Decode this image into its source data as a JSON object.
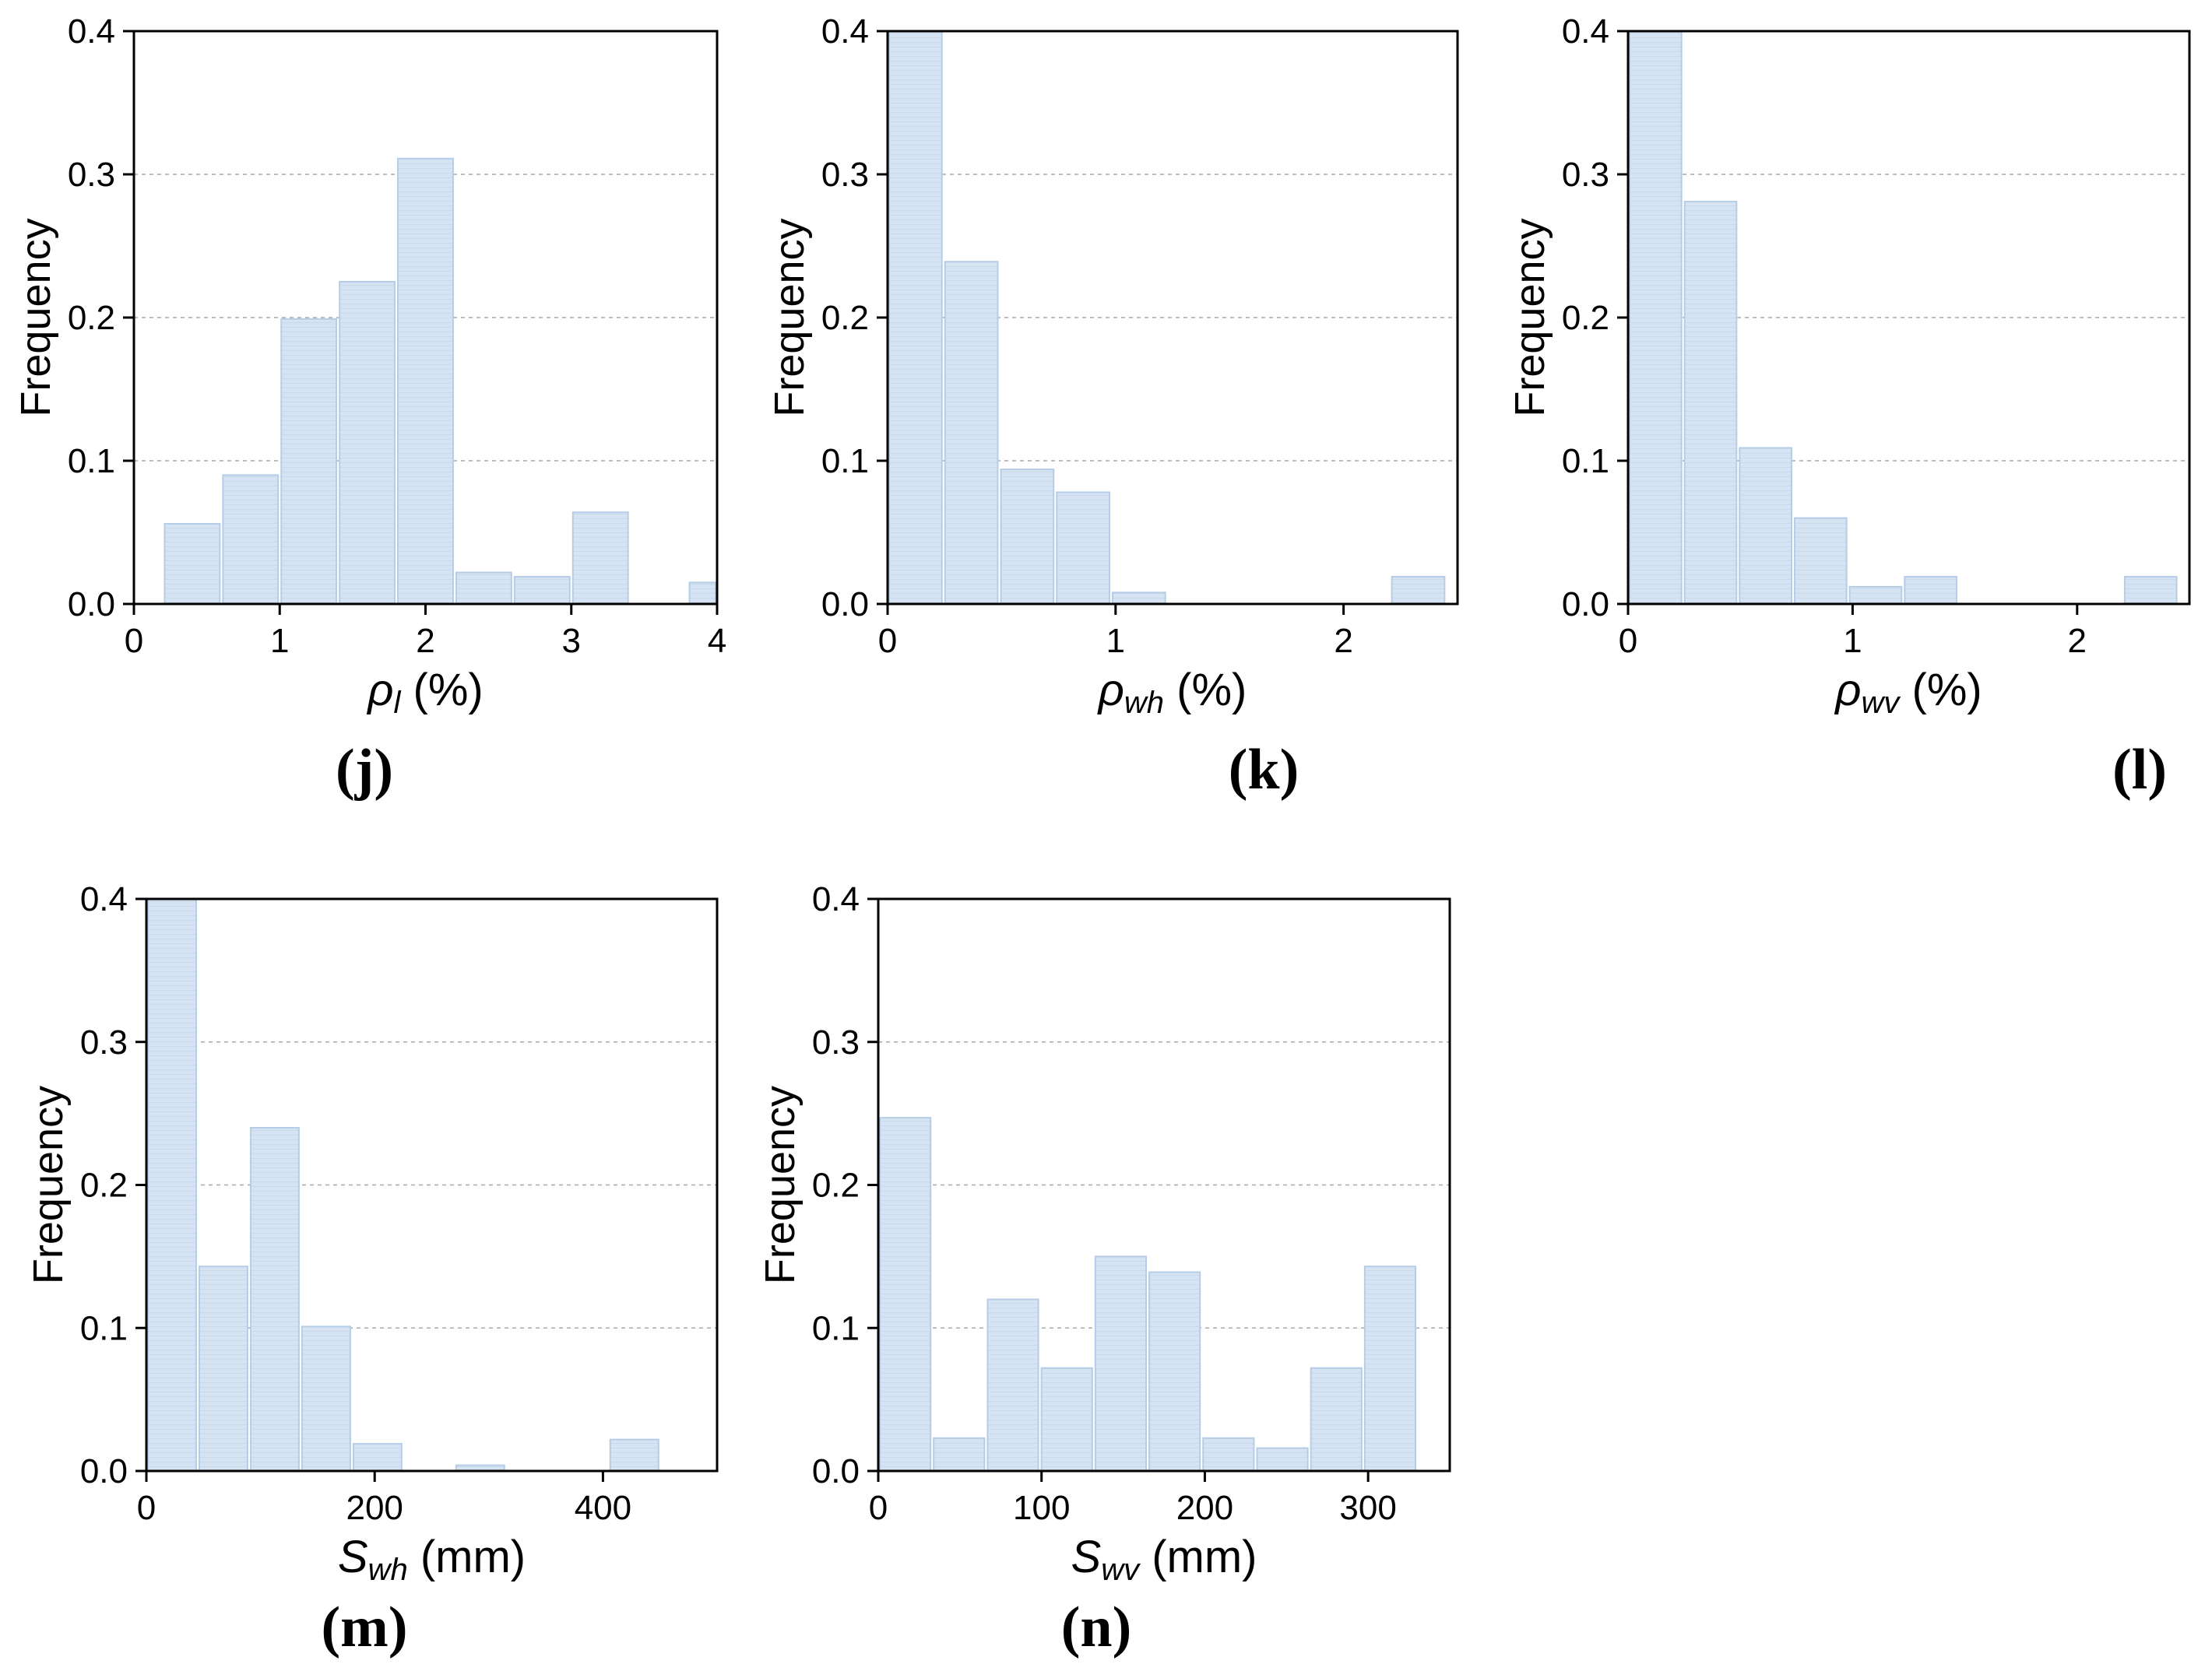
{
  "chart_data": [
    {
      "id": "j",
      "type": "bar",
      "panel_label": "(j)",
      "ylabel": "Frequency",
      "xlabel": {
        "symbol": "ρ",
        "subscript": "l",
        "unit": " (%)"
      },
      "xlim": [
        0,
        4
      ],
      "ylim": [
        0,
        0.4
      ],
      "xticks": [
        0,
        1,
        2,
        3,
        4
      ],
      "xticklabels": [
        "0",
        "1",
        "2",
        "3",
        "4"
      ],
      "yticks": [
        0,
        0.1,
        0.2,
        0.3,
        0.4
      ],
      "yticklabels": [
        "0.0",
        "0.1",
        "0.2",
        "0.3",
        "0.4"
      ],
      "grid": "horizontal dashed",
      "bars": [
        {
          "x0": 0.2,
          "x1": 0.6,
          "value": 0.056
        },
        {
          "x0": 0.6,
          "x1": 1.0,
          "value": 0.09
        },
        {
          "x0": 1.0,
          "x1": 1.4,
          "value": 0.199
        },
        {
          "x0": 1.4,
          "x1": 1.8,
          "value": 0.225
        },
        {
          "x0": 1.8,
          "x1": 2.2,
          "value": 0.311
        },
        {
          "x0": 2.2,
          "x1": 2.6,
          "value": 0.022
        },
        {
          "x0": 2.6,
          "x1": 3.0,
          "value": 0.019
        },
        {
          "x0": 3.0,
          "x1": 3.4,
          "value": 0.064
        },
        {
          "x0": 3.8,
          "x1": 4.2,
          "value": 0.015
        }
      ]
    },
    {
      "id": "k",
      "type": "bar",
      "panel_label": "(k)",
      "ylabel": "Frequency",
      "xlabel": {
        "symbol": "ρ",
        "subscript": "wh",
        "unit": " (%)"
      },
      "xlim": [
        0,
        2.5
      ],
      "ylim": [
        0,
        0.4
      ],
      "xticks": [
        0,
        1,
        2
      ],
      "xticklabels": [
        "0",
        "1",
        "2"
      ],
      "yticks": [
        0,
        0.1,
        0.2,
        0.3,
        0.4
      ],
      "yticklabels": [
        "0.0",
        "0.1",
        "0.2",
        "0.3",
        "0.4"
      ],
      "grid": "horizontal dashed",
      "bars": [
        {
          "x0": 0.0,
          "x1": 0.245,
          "value": 0.4
        },
        {
          "x0": 0.245,
          "x1": 0.49,
          "value": 0.239
        },
        {
          "x0": 0.49,
          "x1": 0.735,
          "value": 0.094
        },
        {
          "x0": 0.735,
          "x1": 0.98,
          "value": 0.078
        },
        {
          "x0": 0.98,
          "x1": 1.225,
          "value": 0.008
        },
        {
          "x0": 2.205,
          "x1": 2.45,
          "value": 0.019
        }
      ]
    },
    {
      "id": "l",
      "type": "bar",
      "panel_label": "(l)",
      "ylabel": "Frequency",
      "xlabel": {
        "symbol": "ρ",
        "subscript": "wv",
        "unit": " (%)"
      },
      "xlim": [
        0,
        2.5
      ],
      "ylim": [
        0,
        0.4
      ],
      "xticks": [
        0,
        1,
        2
      ],
      "xticklabels": [
        "0",
        "1",
        "2"
      ],
      "yticks": [
        0,
        0.1,
        0.2,
        0.3,
        0.4
      ],
      "yticklabels": [
        "0.0",
        "0.1",
        "0.2",
        "0.3",
        "0.4"
      ],
      "grid": "horizontal dashed",
      "bars": [
        {
          "x0": 0.0,
          "x1": 0.245,
          "value": 0.4
        },
        {
          "x0": 0.245,
          "x1": 0.49,
          "value": 0.281
        },
        {
          "x0": 0.49,
          "x1": 0.735,
          "value": 0.109
        },
        {
          "x0": 0.735,
          "x1": 0.98,
          "value": 0.06
        },
        {
          "x0": 0.98,
          "x1": 1.225,
          "value": 0.012
        },
        {
          "x0": 1.225,
          "x1": 1.47,
          "value": 0.019
        },
        {
          "x0": 2.205,
          "x1": 2.45,
          "value": 0.019
        }
      ]
    },
    {
      "id": "m",
      "type": "bar",
      "panel_label": "(m)",
      "ylabel": "Frequency",
      "xlabel": {
        "symbol": "S",
        "subscript": "wh",
        "unit": " (mm)"
      },
      "xlim": [
        0,
        500
      ],
      "ylim": [
        0,
        0.4
      ],
      "xticks": [
        0,
        200,
        400
      ],
      "xticklabels": [
        "0",
        "200",
        "400"
      ],
      "yticks": [
        0,
        0.1,
        0.2,
        0.3,
        0.4
      ],
      "yticklabels": [
        "0.0",
        "0.1",
        "0.2",
        "0.3",
        "0.4"
      ],
      "grid": "horizontal dashed",
      "bars": [
        {
          "x0": 0,
          "x1": 45,
          "value": 0.4
        },
        {
          "x0": 45,
          "x1": 90,
          "value": 0.143
        },
        {
          "x0": 90,
          "x1": 135,
          "value": 0.24
        },
        {
          "x0": 135,
          "x1": 180,
          "value": 0.101
        },
        {
          "x0": 180,
          "x1": 225,
          "value": 0.019
        },
        {
          "x0": 270,
          "x1": 315,
          "value": 0.004
        },
        {
          "x0": 405,
          "x1": 450,
          "value": 0.022
        }
      ]
    },
    {
      "id": "n",
      "type": "bar",
      "panel_label": "(n)",
      "ylabel": "Frequency",
      "xlabel": {
        "symbol": "S",
        "subscript": "wv",
        "unit": " (mm)"
      },
      "xlim": [
        0,
        350
      ],
      "ylim": [
        0,
        0.4
      ],
      "xticks": [
        0,
        100,
        200,
        300
      ],
      "xticklabels": [
        "0",
        "100",
        "200",
        "300"
      ],
      "yticks": [
        0,
        0.1,
        0.2,
        0.3,
        0.4
      ],
      "yticklabels": [
        "0.0",
        "0.1",
        "0.2",
        "0.3",
        "0.4"
      ],
      "grid": "horizontal dashed",
      "bars": [
        {
          "x0": 0,
          "x1": 33,
          "value": 0.247
        },
        {
          "x0": 33,
          "x1": 66,
          "value": 0.023
        },
        {
          "x0": 66,
          "x1": 99,
          "value": 0.12
        },
        {
          "x0": 99,
          "x1": 132,
          "value": 0.072
        },
        {
          "x0": 132,
          "x1": 165,
          "value": 0.15
        },
        {
          "x0": 165,
          "x1": 198,
          "value": 0.139
        },
        {
          "x0": 198,
          "x1": 231,
          "value": 0.023
        },
        {
          "x0": 231,
          "x1": 264,
          "value": 0.016
        },
        {
          "x0": 264,
          "x1": 297,
          "value": 0.072
        },
        {
          "x0": 297,
          "x1": 330,
          "value": 0.143
        }
      ]
    }
  ],
  "colors": {
    "bar_fill": "#d6e3f2",
    "bar_stroke": "#b5cde6",
    "bar_hatch": "#c8d9ec",
    "grid": "#a8a8a8",
    "axis": "#000000"
  }
}
